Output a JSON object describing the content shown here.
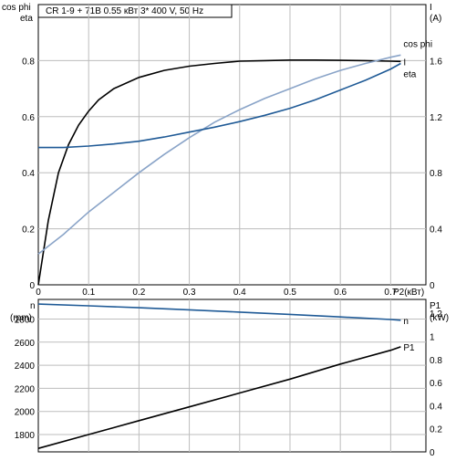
{
  "header": {
    "title": "CR 1-9 + 71B    0.55 кВт    3* 400 V, 50 Hz"
  },
  "chart_data": [
    {
      "type": "line",
      "axes": {
        "left_title_1": "cos phi",
        "left_title_2": "eta",
        "right_title_1": "I",
        "right_title_2": "(A)",
        "xlabel": "P2(кВт)",
        "xlim": [
          0,
          0.77
        ],
        "left_ylim": [
          0,
          1.0
        ],
        "right_ylim": [
          0,
          2.0
        ],
        "x_ticks": [
          "0",
          "0.1",
          "0.2",
          "0.3",
          "0.4",
          "0.5",
          "0.6",
          "0.7"
        ],
        "x_tick_values": [
          0,
          0.1,
          0.2,
          0.3,
          0.4,
          0.5,
          0.6,
          0.7
        ],
        "left_ticks": [
          "0",
          "0.2",
          "0.4",
          "0.6",
          "0.8"
        ],
        "left_tick_values": [
          0,
          0.2,
          0.4,
          0.6,
          0.8
        ],
        "right_ticks": [
          "0",
          "0.4",
          "0.8",
          "1.2",
          "1.6"
        ],
        "right_tick_values": [
          0,
          0.4,
          0.8,
          1.2,
          1.6
        ],
        "grid": true
      },
      "series": [
        {
          "name": "eta",
          "axis": "left",
          "color": "#000000",
          "x": [
            0,
            0.02,
            0.04,
            0.06,
            0.08,
            0.1,
            0.12,
            0.15,
            0.2,
            0.25,
            0.3,
            0.35,
            0.4,
            0.45,
            0.5,
            0.55,
            0.6,
            0.65,
            0.7,
            0.72
          ],
          "y": [
            0,
            0.23,
            0.4,
            0.5,
            0.57,
            0.62,
            0.66,
            0.7,
            0.74,
            0.765,
            0.78,
            0.79,
            0.798,
            0.8,
            0.802,
            0.802,
            0.801,
            0.8,
            0.798,
            0.797
          ]
        },
        {
          "name": "cos phi",
          "axis": "left",
          "color": "#8aa4c8",
          "x": [
            0,
            0.05,
            0.1,
            0.15,
            0.2,
            0.25,
            0.3,
            0.35,
            0.4,
            0.45,
            0.5,
            0.55,
            0.6,
            0.65,
            0.7,
            0.72
          ],
          "y": [
            0.11,
            0.18,
            0.26,
            0.33,
            0.4,
            0.465,
            0.525,
            0.58,
            0.625,
            0.665,
            0.7,
            0.735,
            0.765,
            0.79,
            0.812,
            0.82
          ]
        },
        {
          "name": "I",
          "axis": "right",
          "color": "#1f5a96",
          "x": [
            0,
            0.05,
            0.1,
            0.15,
            0.2,
            0.25,
            0.3,
            0.35,
            0.4,
            0.45,
            0.5,
            0.55,
            0.6,
            0.65,
            0.7,
            0.72
          ],
          "y": [
            0.98,
            0.98,
            0.99,
            1.005,
            1.025,
            1.055,
            1.09,
            1.125,
            1.165,
            1.21,
            1.26,
            1.32,
            1.39,
            1.46,
            1.54,
            1.58
          ]
        }
      ]
    },
    {
      "type": "line",
      "axes": {
        "left_title_1": "n",
        "left_title_2": "(rpm)",
        "right_title_1": "P1",
        "right_title_2": "(kW)",
        "xlim": [
          0,
          0.77
        ],
        "left_ylim": [
          1650,
          2970
        ],
        "right_ylim": [
          0,
          1.32
        ],
        "x_tick_values": [
          0,
          0.1,
          0.2,
          0.3,
          0.4,
          0.5,
          0.6,
          0.7
        ],
        "left_ticks": [
          "1800",
          "2000",
          "2200",
          "2400",
          "2600",
          "2800"
        ],
        "left_tick_values": [
          1800,
          2000,
          2200,
          2400,
          2600,
          2800
        ],
        "right_ticks": [
          "0",
          "0.2",
          "0.4",
          "0.6",
          "0.8",
          "1",
          "1.2"
        ],
        "right_tick_values": [
          0,
          0.2,
          0.4,
          0.6,
          0.8,
          1.0,
          1.2
        ],
        "grid": true
      },
      "series": [
        {
          "name": "n",
          "axis": "left",
          "color": "#1f5a96",
          "x": [
            0,
            0.1,
            0.2,
            0.3,
            0.4,
            0.5,
            0.6,
            0.7,
            0.72
          ],
          "y": [
            2930,
            2915,
            2898,
            2880,
            2860,
            2840,
            2818,
            2796,
            2790
          ]
        },
        {
          "name": "P1",
          "axis": "right",
          "color": "#000000",
          "x": [
            0,
            0.1,
            0.2,
            0.3,
            0.4,
            0.5,
            0.6,
            0.7,
            0.72
          ],
          "y": [
            0.03,
            0.15,
            0.27,
            0.39,
            0.51,
            0.63,
            0.76,
            0.88,
            0.91
          ]
        }
      ]
    }
  ]
}
